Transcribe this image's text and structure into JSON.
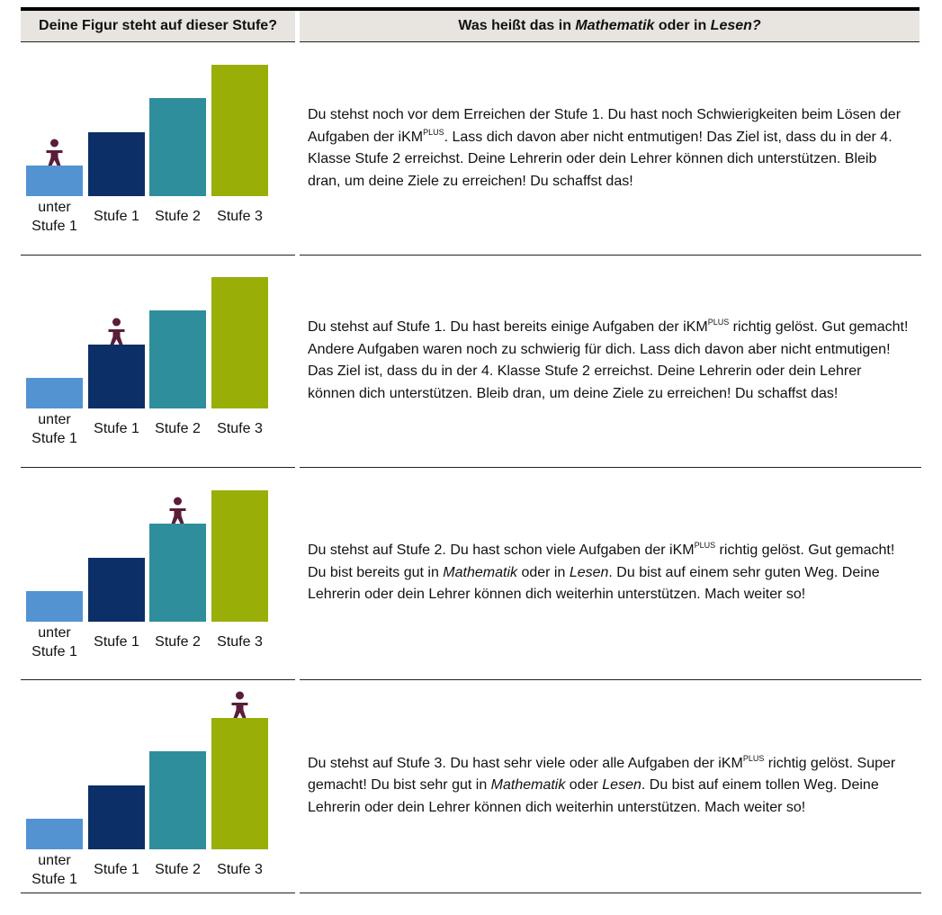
{
  "header": {
    "col1": "Deine Figur steht auf dieser Stufe?",
    "col2": [
      {
        "text": "Was heißt das in "
      },
      {
        "italic": "Mathematik"
      },
      {
        "text": " oder in "
      },
      {
        "italic": "Lesen?"
      }
    ]
  },
  "rows": [
    {
      "steps": [
        "unter Stufe 1",
        "Stufe 1",
        "Stufe 2",
        "Stufe 3"
      ],
      "description": [
        {
          "text": "Du stehst noch vor dem Erreichen der Stufe 1. Du hast noch Schwierigkeiten beim Lösen der Aufgaben der iKM"
        },
        {
          "sup": "PLUS"
        },
        {
          "text": ". Lass dich davon aber nicht entmutigen! Das Ziel ist, dass du in der 4. Klasse Stufe 2 erreichst. Deine Lehrerin oder dein Lehrer können dich unterstützen. Bleib dran, um deine Ziele zu erreichen! Du schaffst das!"
        }
      ]
    },
    {
      "steps": [
        "unter Stufe 1",
        "Stufe 1",
        "Stufe 2",
        "Stufe 3"
      ],
      "description": [
        {
          "text": "Du stehst auf Stufe 1. Du hast bereits einige Aufgaben der iKM"
        },
        {
          "sup": "PLUS"
        },
        {
          "text": " richtig gelöst. Gut gemacht! Andere Aufgaben waren noch zu schwierig für dich. Lass dich davon aber nicht entmutigen!  Das Ziel ist, dass du in der 4. Klasse Stufe 2 erreichst. Deine Lehrerin oder dein Lehrer können dich unterstützen. Bleib dran, um deine Ziele zu erreichen! Du schaffst das!"
        }
      ]
    },
    {
      "steps": [
        "unter Stufe 1",
        "Stufe 1",
        "Stufe 2",
        "Stufe 3"
      ],
      "description": [
        {
          "text": "Du stehst auf Stufe 2. Du hast schon viele Aufgaben der iKM"
        },
        {
          "sup": "PLUS"
        },
        {
          "text": " richtig gelöst. Gut gemacht! Du bist bereits gut in "
        },
        {
          "italic": "Mathematik"
        },
        {
          "text": " oder in "
        },
        {
          "italic": "Lesen"
        },
        {
          "text": ". Du bist auf einem sehr guten Weg. Deine Lehrerin oder dein Lehrer können dich weiterhin unterstützen. Mach weiter so!"
        }
      ]
    },
    {
      "steps": [
        "unter Stufe 1",
        "Stufe 1",
        "Stufe 2",
        "Stufe 3"
      ],
      "description": [
        {
          "text": "Du stehst auf Stufe 3. Du hast sehr viele oder alle Aufgaben der iKM"
        },
        {
          "sup": "PLUS"
        },
        {
          "text": " richtig gelöst. Super gemacht! Du bist sehr gut in "
        },
        {
          "italic": "Mathematik"
        },
        {
          "text": " oder "
        },
        {
          "italic": "Lesen"
        },
        {
          "text": ". Du bist auf einem tollen Weg. Deine Lehrerin oder dein Lehrer können dich weiterhin unterstützen. Mach weiter so!"
        }
      ]
    }
  ]
}
